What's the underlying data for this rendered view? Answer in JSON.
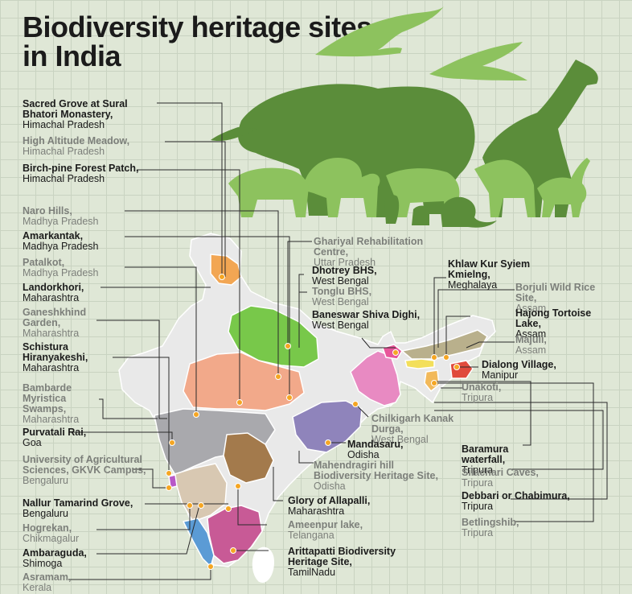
{
  "title": {
    "line1": "Biodiversity heritage sites",
    "line2": "in India"
  },
  "colors": {
    "background": "#dfe7d6",
    "animals_dark": "#5b8d3a",
    "animals_light": "#8dc25e",
    "marker": "#f5a623",
    "leader": "#2a2a2a"
  },
  "left_labels": [
    {
      "name": "Sacred Grove at Sural Bhatori Monastery,",
      "state": "Himachal Pradesh"
    },
    {
      "name": "High Altitude Meadow,",
      "state": "Himachal Pradesh"
    },
    {
      "name": "Birch-pine Forest Patch,",
      "state": "Himachal Pradesh"
    },
    {
      "name": "Naro Hills,",
      "state": "Madhya Pradesh"
    },
    {
      "name": "Amarkantak,",
      "state": "Madhya Pradesh"
    },
    {
      "name": "Patalkot,",
      "state": "Madhya Pradesh"
    },
    {
      "name": "Landorkhori,",
      "state": "Maharashtra"
    },
    {
      "name": "Ganeshkhind Garden,",
      "state": "Maharashtra"
    },
    {
      "name": "Schistura Hiranyakeshi,",
      "state": "Maharashtra"
    },
    {
      "name": "Bambarde Myristica Swamps,",
      "state": "Maharashtra"
    },
    {
      "name": "Purvatali Rai,",
      "state": "Goa"
    },
    {
      "name": "University of Agricultural Sciences, GKVK Campus,",
      "state": "Bengaluru"
    },
    {
      "name": "Nallur Tamarind Grove,",
      "state": "Bengaluru"
    },
    {
      "name": "Hogrekan,",
      "state": "Chikmagalur"
    },
    {
      "name": "Ambaraguda,",
      "state": "Shimoga"
    },
    {
      "name": "Asramam,",
      "state": "Kerala"
    }
  ],
  "center_labels": [
    {
      "name": "Ghariyal Rehabilitation Centre,",
      "state": "Uttar Pradesh"
    },
    {
      "name": "Dhotrey BHS,",
      "state": "West Bengal"
    },
    {
      "name": "Tonglu BHS,",
      "state": "West Bengal"
    },
    {
      "name": "Baneswar Shiva Dighi,",
      "state": "West Bengal"
    },
    {
      "name": "Chilkigarh Kanak Durga,",
      "state": "West Bengal"
    },
    {
      "name": "Mandasaru,",
      "state": "Odisha"
    },
    {
      "name": "Mahendragiri hill Biodiversity Heritage Site,",
      "state": "Odisha"
    },
    {
      "name": "Glory of Allapalli,",
      "state": "Maharashtra"
    },
    {
      "name": "Ameenpur lake,",
      "state": "Telangana"
    },
    {
      "name": "Arittapatti Biodiversity Heritage Site,",
      "state": "TamilNadu"
    }
  ],
  "right_labels": [
    {
      "name": "Khlaw Kur Syiem Kmielng,",
      "state": "Meghalaya"
    },
    {
      "name": "Borjuli Wild Rice Site,",
      "state": "Assam"
    },
    {
      "name": "Hajong Tortoise Lake,",
      "state": "Assam"
    },
    {
      "name": "Majuli,",
      "state": "Assam"
    },
    {
      "name": "Dialong Village,",
      "state": "Manipur"
    },
    {
      "name": "Unakoti,",
      "state": "Tripura"
    },
    {
      "name": "Baramura waterfall,",
      "state": "Tripura"
    },
    {
      "name": "Silachari Caves,",
      "state": "Tripura"
    },
    {
      "name": "Debbari or Chabimura,",
      "state": "Tripura"
    },
    {
      "name": "Betlingshib,",
      "state": "Tripura"
    }
  ]
}
